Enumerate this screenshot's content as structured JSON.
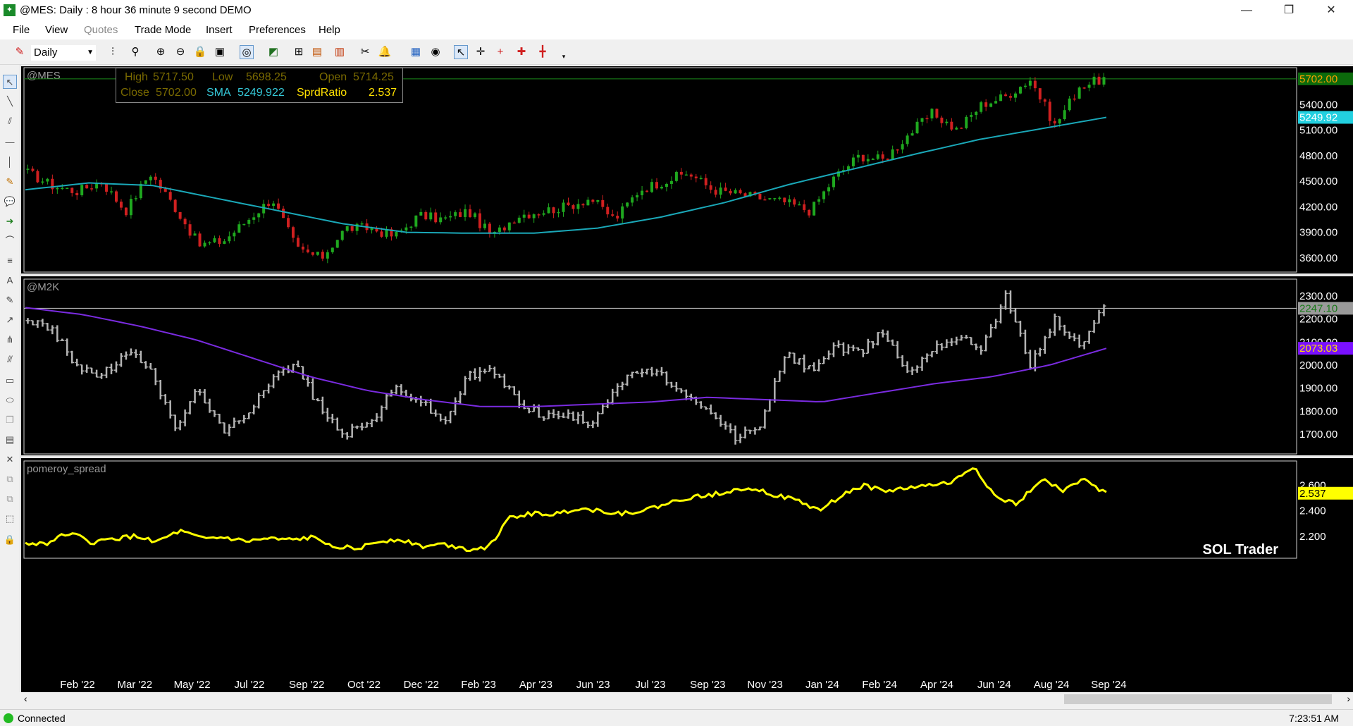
{
  "window": {
    "title": "@MES: Daily : 8 hour 36 minute 9 second DEMO",
    "app_icon": "chart-app-icon"
  },
  "menu": [
    "File",
    "View",
    "Quotes",
    "Trade Mode",
    "Insert",
    "Preferences",
    "Help"
  ],
  "toolbar": {
    "period": "Daily"
  },
  "quote_box": {
    "high_label": "High",
    "high": "5717.50",
    "low_label": "Low",
    "low": "5698.25",
    "open_label": "Open",
    "open": "5714.25",
    "close_label": "Close",
    "close": "5702.00",
    "sma_label": "SMA",
    "sma": "5249.922",
    "ratio_label": "SprdRatio",
    "ratio": "2.537"
  },
  "status": {
    "connection": "Connected",
    "time": "7:23:51 AM"
  },
  "colors": {
    "up": "#1fa81f",
    "down": "#d02020",
    "sma_mes": "#1aa8b8",
    "sma_m2k": "#7a2be0",
    "bar_m2k": "#b4b4b4",
    "ratio": "#ffff00"
  },
  "chart_data": [
    {
      "type": "candlestick",
      "title": "@MES",
      "y_ticks": [
        "5400.00",
        "5100.00",
        "4800.00",
        "4500.00",
        "4200.00",
        "3900.00",
        "3600.00"
      ],
      "ylim": [
        3450,
        5850
      ],
      "last_price": "5702.00",
      "sma_value": "5249.92",
      "series": [
        {
          "name": "close",
          "values": [
            4600,
            4450,
            4380,
            4500,
            4150,
            4600,
            4200,
            3750,
            3800,
            4050,
            4300,
            3700,
            3600,
            3950,
            3950,
            3850,
            4100,
            4050,
            4150,
            3850,
            4100,
            4150,
            4200,
            4300,
            4050,
            4400,
            4500,
            4600,
            4400,
            4350,
            4300,
            4250,
            4150,
            4550,
            4800,
            4750,
            5050,
            5300,
            5100,
            5400,
            5500,
            5700,
            5150,
            5620,
            5702
          ]
        },
        {
          "name": "sma",
          "values": [
            4400,
            4480,
            4450,
            4300,
            4150,
            4000,
            3900,
            3890,
            3890,
            3950,
            4080,
            4250,
            4460,
            4640,
            4820,
            4990,
            5120,
            5250
          ]
        }
      ]
    },
    {
      "type": "ohlc",
      "title": "@M2K",
      "y_ticks": [
        "2300.00",
        "2200.00",
        "2100.00",
        "2000.00",
        "1900.00",
        "1800.00",
        "1700.00"
      ],
      "ylim": [
        1620,
        2380
      ],
      "last_price": "2247.10",
      "sma_value": "2073.03",
      "series": [
        {
          "name": "close",
          "values": [
            2200,
            2150,
            2000,
            1950,
            2050,
            2000,
            1720,
            1900,
            1700,
            1800,
            1950,
            2000,
            1800,
            1700,
            1750,
            1900,
            1850,
            1750,
            1950,
            1980,
            1850,
            1780,
            1780,
            1750,
            1900,
            1980,
            1950,
            1850,
            1780,
            1680,
            1750,
            2050,
            1980,
            2080,
            2050,
            2150,
            1960,
            2080,
            2120,
            2080,
            2300,
            2000,
            2200,
            2080,
            2247
          ]
        },
        {
          "name": "sma",
          "values": [
            2250,
            2220,
            2170,
            2110,
            2030,
            1950,
            1890,
            1850,
            1820,
            1820,
            1830,
            1840,
            1860,
            1850,
            1840,
            1880,
            1920,
            1950,
            2000,
            2073
          ]
        }
      ]
    },
    {
      "type": "line",
      "title": "pomeroy_spread",
      "y_ticks": [
        "2.600",
        "2.400",
        "2.200"
      ],
      "ylim": [
        2.04,
        2.8
      ],
      "last_value": "2.537",
      "series": [
        {
          "name": "pomeroy_spread",
          "values": [
            2.14,
            2.15,
            2.23,
            2.15,
            2.18,
            2.2,
            2.16,
            2.24,
            2.18,
            2.19,
            2.16,
            2.18,
            2.17,
            2.19,
            2.13,
            2.1,
            2.16,
            2.18,
            2.12,
            2.14,
            2.1,
            2.12,
            2.35,
            2.38,
            2.37,
            2.42,
            2.4,
            2.38,
            2.4,
            2.45,
            2.5,
            2.52,
            2.56,
            2.58,
            2.52,
            2.48,
            2.4,
            2.52,
            2.6,
            2.55,
            2.58,
            2.6,
            2.62,
            2.75,
            2.5,
            2.45,
            2.65,
            2.56,
            2.64,
            2.537
          ]
        }
      ]
    }
  ],
  "x_axis_labels": [
    "Feb '22",
    "Mar '22",
    "May '22",
    "Jul '22",
    "Sep '22",
    "Oct '22",
    "Dec '22",
    "Feb '23",
    "Apr '23",
    "Jun '23",
    "Jul '23",
    "Sep '23",
    "Nov '23",
    "Jan '24",
    "Feb '24",
    "Apr '24",
    "Jun '24",
    "Aug '24",
    "Sep '24"
  ],
  "watermark": "SOL Trader"
}
